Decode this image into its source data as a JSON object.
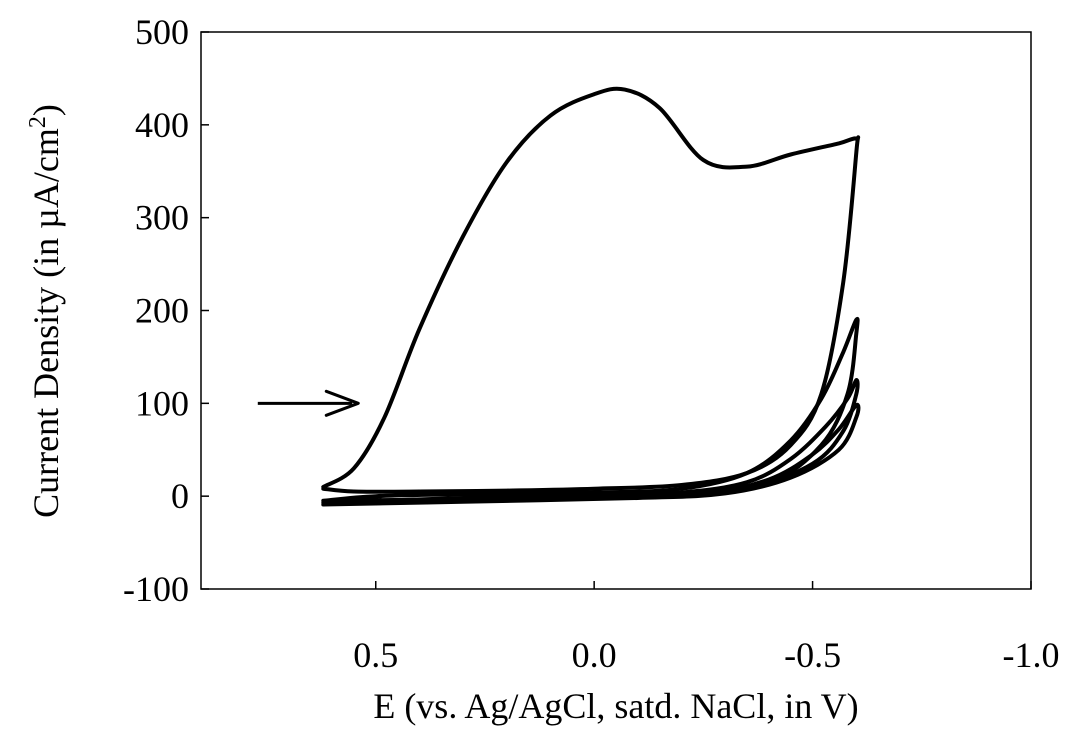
{
  "chart_data": {
    "type": "line",
    "title": "",
    "xlabel": "E (vs. Ag/AgCl, satd. NaCl, in V)",
    "ylabel_prefix": "Current Density (in µA/cm",
    "ylabel_sup": "2",
    "ylabel_suffix": ")",
    "xlim": [
      0.9,
      -1.0
    ],
    "ylim": [
      -100,
      500
    ],
    "x_axis_reversed": true,
    "xticks": [
      0.5,
      0.0,
      -0.5,
      -1.0
    ],
    "xtick_labels": [
      "0.5",
      "0.0",
      "-0.5",
      "-1.0"
    ],
    "yticks": [
      -100,
      0,
      100,
      200,
      300,
      400,
      500
    ],
    "ytick_labels": [
      "-100",
      "0",
      "100",
      "200",
      "300",
      "400",
      "500"
    ],
    "grid": false,
    "legend": "none",
    "series_color": "#000000",
    "annotation": {
      "kind": "arrow",
      "from": [
        0.77,
        100
      ],
      "to": [
        0.54,
        100
      ]
    },
    "series": [
      {
        "x": [
          0.62,
          0.55,
          0.48,
          0.4,
          0.3,
          0.2,
          0.1,
          0.0,
          -0.07,
          -0.15,
          -0.25,
          -0.35,
          -0.45,
          -0.56,
          -0.6,
          -0.6,
          -0.57,
          -0.52,
          -0.45,
          -0.35,
          -0.2,
          0.0,
          0.2,
          0.4,
          0.55,
          0.62
        ],
        "y": [
          10,
          30,
          85,
          180,
          280,
          360,
          410,
          433,
          438,
          418,
          362,
          355,
          368,
          380,
          385,
          370,
          230,
          110,
          55,
          25,
          12,
          8,
          6,
          5,
          5,
          8
        ]
      },
      {
        "x": [
          0.62,
          0.5,
          0.3,
          0.0,
          -0.2,
          -0.35,
          -0.45,
          -0.52,
          -0.57,
          -0.6,
          -0.6,
          -0.58,
          -0.52,
          -0.4,
          -0.2,
          0.0,
          0.3,
          0.62
        ],
        "y": [
          -5,
          0,
          2,
          4,
          8,
          25,
          60,
          105,
          155,
          190,
          175,
          110,
          55,
          15,
          3,
          1,
          -3,
          -5
        ]
      },
      {
        "x": [
          0.62,
          0.3,
          0.0,
          -0.2,
          -0.35,
          -0.45,
          -0.53,
          -0.58,
          -0.6,
          -0.6,
          -0.57,
          -0.5,
          -0.35,
          -0.15,
          0.2,
          0.62
        ],
        "y": [
          -7,
          -2,
          1,
          4,
          15,
          40,
          75,
          105,
          125,
          110,
          70,
          35,
          8,
          0,
          -4,
          -7
        ]
      },
      {
        "x": [
          0.62,
          0.3,
          0.0,
          -0.25,
          -0.4,
          -0.5,
          -0.56,
          -0.6,
          -0.6,
          -0.56,
          -0.45,
          -0.3,
          -0.1,
          0.3,
          0.62
        ],
        "y": [
          -9,
          -4,
          -1,
          3,
          18,
          45,
          72,
          98,
          85,
          50,
          20,
          3,
          -2,
          -6,
          -9
        ]
      }
    ]
  }
}
